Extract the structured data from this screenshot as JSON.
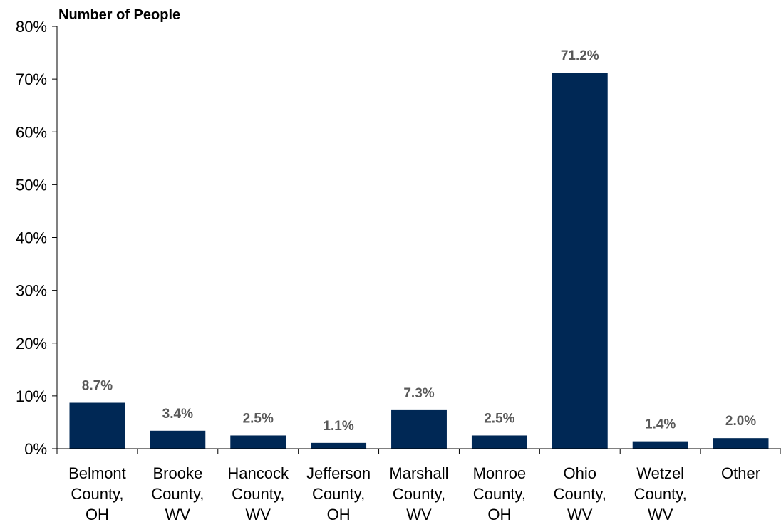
{
  "chart_data": {
    "type": "bar",
    "ylabel": "Number of People",
    "categories": [
      [
        "Belmont",
        "County,",
        "OH"
      ],
      [
        "Brooke",
        "County,",
        "WV"
      ],
      [
        "Hancock",
        "County,",
        "WV"
      ],
      [
        "Jefferson",
        "County,",
        "OH"
      ],
      [
        "Marshall",
        "County,",
        "WV"
      ],
      [
        "Monroe",
        "County,",
        "OH"
      ],
      [
        "Ohio",
        "County,",
        "WV"
      ],
      [
        "Wetzel",
        "County,",
        "WV"
      ],
      [
        "Other"
      ]
    ],
    "values": [
      8.7,
      3.4,
      2.5,
      1.1,
      7.3,
      2.5,
      71.2,
      1.4,
      2.0
    ],
    "data_labels": [
      "8.7%",
      "3.4%",
      "2.5%",
      "1.1%",
      "7.3%",
      "2.5%",
      "71.2%",
      "1.4%",
      "2.0%"
    ],
    "ylim": [
      0,
      80
    ],
    "yticks": [
      0,
      10,
      20,
      30,
      40,
      50,
      60,
      70,
      80
    ],
    "ytick_labels": [
      "0%",
      "10%",
      "20%",
      "30%",
      "40%",
      "50%",
      "60%",
      "70%",
      "80%"
    ],
    "grid": false,
    "legend": "none",
    "colors": {
      "bar": "#002855",
      "data_label": "#595959",
      "axis": "#000000"
    }
  }
}
